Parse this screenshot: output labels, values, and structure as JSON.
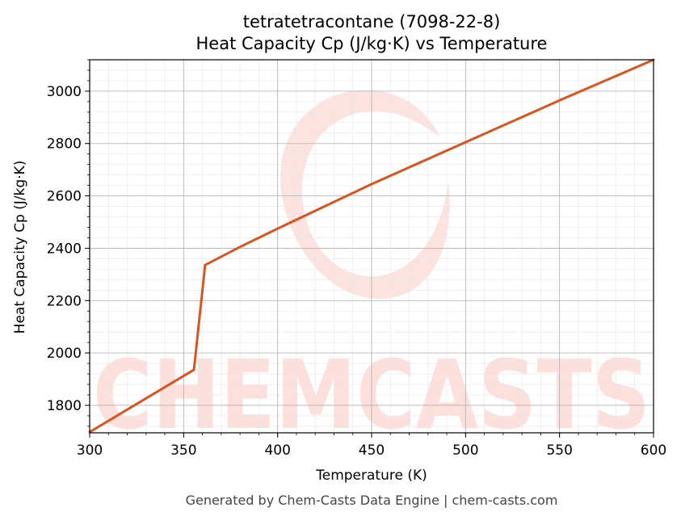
{
  "chart_data": {
    "type": "line",
    "title": "tetratetracontane (7098-22-8)",
    "subtitle": "Heat Capacity Cp (J/kg·K) vs Temperature",
    "xlabel": "Temperature (K)",
    "ylabel": "Heat Capacity Cp (J/kg·K)",
    "xlim": [
      300,
      600
    ],
    "ylim": [
      1695,
      3120
    ],
    "xticks": [
      300,
      350,
      400,
      450,
      500,
      550,
      600
    ],
    "yticks": [
      1800,
      2000,
      2200,
      2400,
      2600,
      2800,
      3000
    ],
    "grid": true,
    "series": [
      {
        "color": "#d9541e",
        "x": [
          300,
          355.5,
          361.4,
          380,
          400,
          450,
          500,
          550,
          600
        ],
        "y": [
          1698,
          1936,
          2336,
          2405,
          2475,
          2645,
          2805,
          2965,
          3120
        ]
      }
    ]
  },
  "watermark": {
    "text": "CHEMCASTS",
    "color": "#fde0dc"
  },
  "footer": "Generated by Chem-Casts Data Engine | chem-casts.com"
}
